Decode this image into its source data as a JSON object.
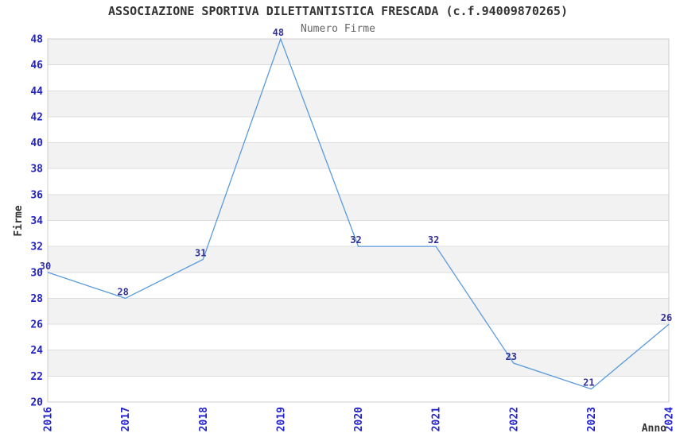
{
  "chart_data": {
    "type": "line",
    "title": "ASSOCIAZIONE SPORTIVA DILETTANTISTICA FRESCADA (c.f.94009870265)",
    "subtitle": "Numero Firme",
    "x": [
      "2016",
      "2017",
      "2018",
      "2019",
      "2020",
      "2021",
      "2022",
      "2023",
      "2024"
    ],
    "values": [
      30,
      28,
      31,
      48,
      32,
      32,
      23,
      21,
      26
    ],
    "xlabel": "Anno",
    "ylabel": "Firme",
    "ylim": [
      20,
      48
    ],
    "ytick_step": 2,
    "grid": "horizontal-only",
    "band_style": "alternating-horizontal",
    "legend_position": "none",
    "point_labels_visible": true
  },
  "colors": {
    "background": "#FFFFFF",
    "line": "#5A9BDC",
    "tick_label": "#2222CC",
    "point_label": "#333399",
    "title": "#333333",
    "subtitle": "#666666",
    "axis_label": "#333333",
    "band": "#F2F2F2",
    "gridline": "#DDDDDD",
    "plot_border": "#CCCCCC"
  }
}
